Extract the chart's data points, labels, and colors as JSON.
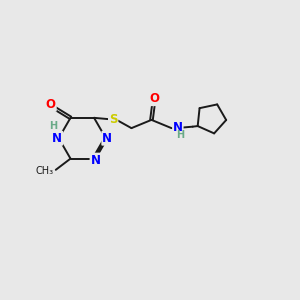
{
  "bg_color": "#e8e8e8",
  "bond_color": "#1a1a1a",
  "N_color": "#0000ff",
  "O_color": "#ff0000",
  "S_color": "#cccc00",
  "NH_color": "#6aaa88",
  "figsize": [
    3.0,
    3.0
  ],
  "dpi": 100,
  "xlim": [
    0,
    10
  ],
  "ylim": [
    0,
    10
  ]
}
